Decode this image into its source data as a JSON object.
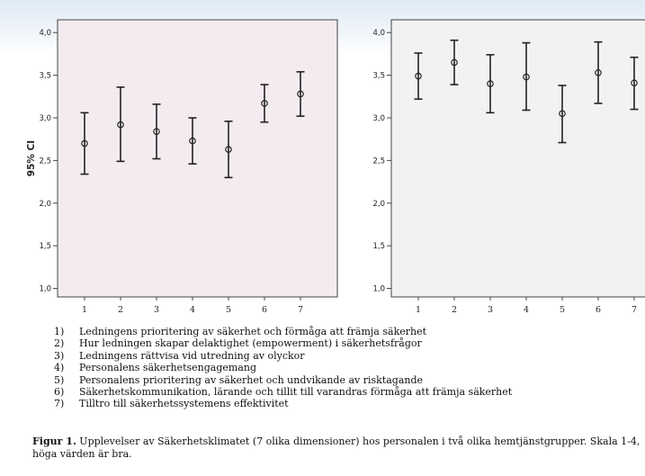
{
  "colors": {
    "page_gradient_top": "#dfe9f5",
    "panel_left_bg": "#f3ebf0",
    "panel_right_bg": "#f2f2f2",
    "axis": "#444444",
    "marks": "#222222"
  },
  "chart_data": [
    {
      "type": "errorbar",
      "ylabel": "95% CI",
      "ylim": [
        0.9,
        4.15
      ],
      "yticks": [
        "1,0",
        "1,5",
        "2,0",
        "2,5",
        "3,0",
        "3,5",
        "4,0"
      ],
      "categories": [
        "1",
        "2",
        "3",
        "4",
        "5",
        "6",
        "7"
      ],
      "mean": [
        2.7,
        2.92,
        2.84,
        2.73,
        2.63,
        3.17,
        3.28
      ],
      "lower": [
        2.34,
        2.49,
        2.52,
        2.46,
        2.3,
        2.95,
        3.02
      ],
      "upper": [
        3.06,
        3.36,
        3.16,
        3.0,
        2.96,
        3.39,
        3.54
      ],
      "grid": false
    },
    {
      "type": "errorbar",
      "ylabel": "",
      "ylim": [
        0.9,
        4.15
      ],
      "yticks": [
        "1,0",
        "1,5",
        "2,0",
        "2,5",
        "3,0",
        "3,5",
        "4,0"
      ],
      "categories": [
        "1",
        "2",
        "3",
        "4",
        "5",
        "6",
        "7"
      ],
      "mean": [
        3.49,
        3.65,
        3.4,
        3.48,
        3.05,
        3.53,
        3.41
      ],
      "lower": [
        3.22,
        3.39,
        3.06,
        3.09,
        2.71,
        3.17,
        3.1
      ],
      "upper": [
        3.76,
        3.91,
        3.74,
        3.88,
        3.38,
        3.89,
        3.71
      ],
      "grid": false
    }
  ],
  "legend_items": [
    {
      "num": "1)",
      "text": "Ledningens prioritering av säkerhet och förmåga att främja säkerhet"
    },
    {
      "num": "2)",
      "text": "Hur ledningen skapar delaktighet (empowerment) i säkerhetsfrågor"
    },
    {
      "num": "3)",
      "text": "Ledningens rättvisa vid utredning av olyckor"
    },
    {
      "num": "4)",
      "text": "Personalens säkerhetsengagemang"
    },
    {
      "num": "5)",
      "text": "Personalens prioritering av säkerhet och undvikande av risktagande"
    },
    {
      "num": "6)",
      "text": "Säkerhetskommunikation, lärande och tillit till varandras förmåga att främja säkerhet"
    },
    {
      "num": "7)",
      "text": "Tilltro till säkerhetssystemens effektivitet"
    }
  ],
  "caption": {
    "figure_label": "Figur 1.",
    "text": " Upplevelser av Säkerhetsklimatet (7 olika dimensioner) hos personalen i två olika hemtjänstgrupper.  Skala 1-4, höga värden är bra."
  }
}
